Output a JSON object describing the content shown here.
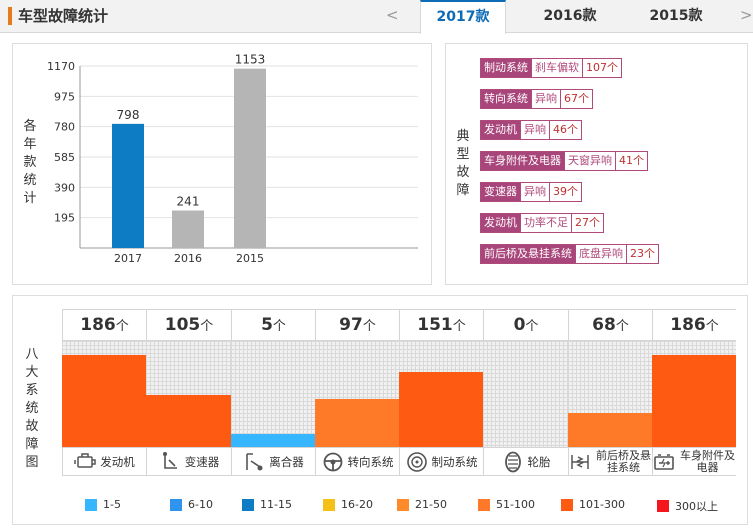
{
  "header": {
    "title": "车型故障统计",
    "prev_arrow": "<",
    "next_arrow": ">",
    "tabs": [
      "2017款",
      "2016款",
      "2015款"
    ],
    "active_tab": "2017款"
  },
  "chart_data": [
    {
      "type": "bar",
      "ylabel": "各年款统计",
      "categories": [
        "2017",
        "2016",
        "2015"
      ],
      "values": [
        798,
        241,
        1153
      ],
      "colors": [
        "#0e7cc4",
        "#b5b5b5",
        "#b5b5b5"
      ],
      "yticks": [
        195,
        390,
        585,
        780,
        975,
        1170
      ],
      "ylim": [
        0,
        1170
      ]
    },
    {
      "type": "bar",
      "ylabel": "八大系统故障图",
      "categories": [
        "发动机",
        "变速器",
        "离合器",
        "转向系统",
        "制动系统",
        "轮胎",
        "前后桥及悬挂系统",
        "车身附件及电器"
      ],
      "values": [
        186,
        105,
        5,
        97,
        151,
        0,
        68,
        186
      ],
      "unit": "个",
      "colors": [
        "#ff5a12",
        "#ff5a12",
        "#36b6ff",
        "#ff7a28",
        "#ff5a12",
        "",
        "#ff7a28",
        "#ff5a12"
      ],
      "legend": [
        {
          "label": "1-5",
          "color": "#36b6ff"
        },
        {
          "label": "6-10",
          "color": "#2f93f0"
        },
        {
          "label": "11-15",
          "color": "#0e7cc4"
        },
        {
          "label": "16-20",
          "color": "#f5c018"
        },
        {
          "label": "21-50",
          "color": "#ff8a2a"
        },
        {
          "label": "51-100",
          "color": "#ff7a28"
        },
        {
          "label": "101-300",
          "color": "#ff5a12"
        },
        {
          "label": "300以上",
          "color": "#f4161c"
        }
      ]
    }
  ],
  "faults": {
    "title": "典型故障",
    "items": [
      {
        "system": "制动系统",
        "phenomenon": "刹车偏软",
        "count": "107个"
      },
      {
        "system": "转向系统",
        "phenomenon": "异响",
        "count": "67个"
      },
      {
        "system": "发动机",
        "phenomenon": "异响",
        "count": "46个"
      },
      {
        "system": "车身附件及电器",
        "phenomenon": "天窗异响",
        "count": "41个"
      },
      {
        "system": "变速器",
        "phenomenon": "异响",
        "count": "39个"
      },
      {
        "system": "发动机",
        "phenomenon": "功率不足",
        "count": "27个"
      },
      {
        "system": "前后桥及悬挂系统",
        "phenomenon": "底盘异响",
        "count": "23个"
      }
    ]
  },
  "icons": [
    "engine-icon",
    "gearbox-icon",
    "clutch-icon",
    "steering-wheel-icon",
    "brake-disc-icon",
    "tire-icon",
    "suspension-icon",
    "car-battery-icon"
  ]
}
